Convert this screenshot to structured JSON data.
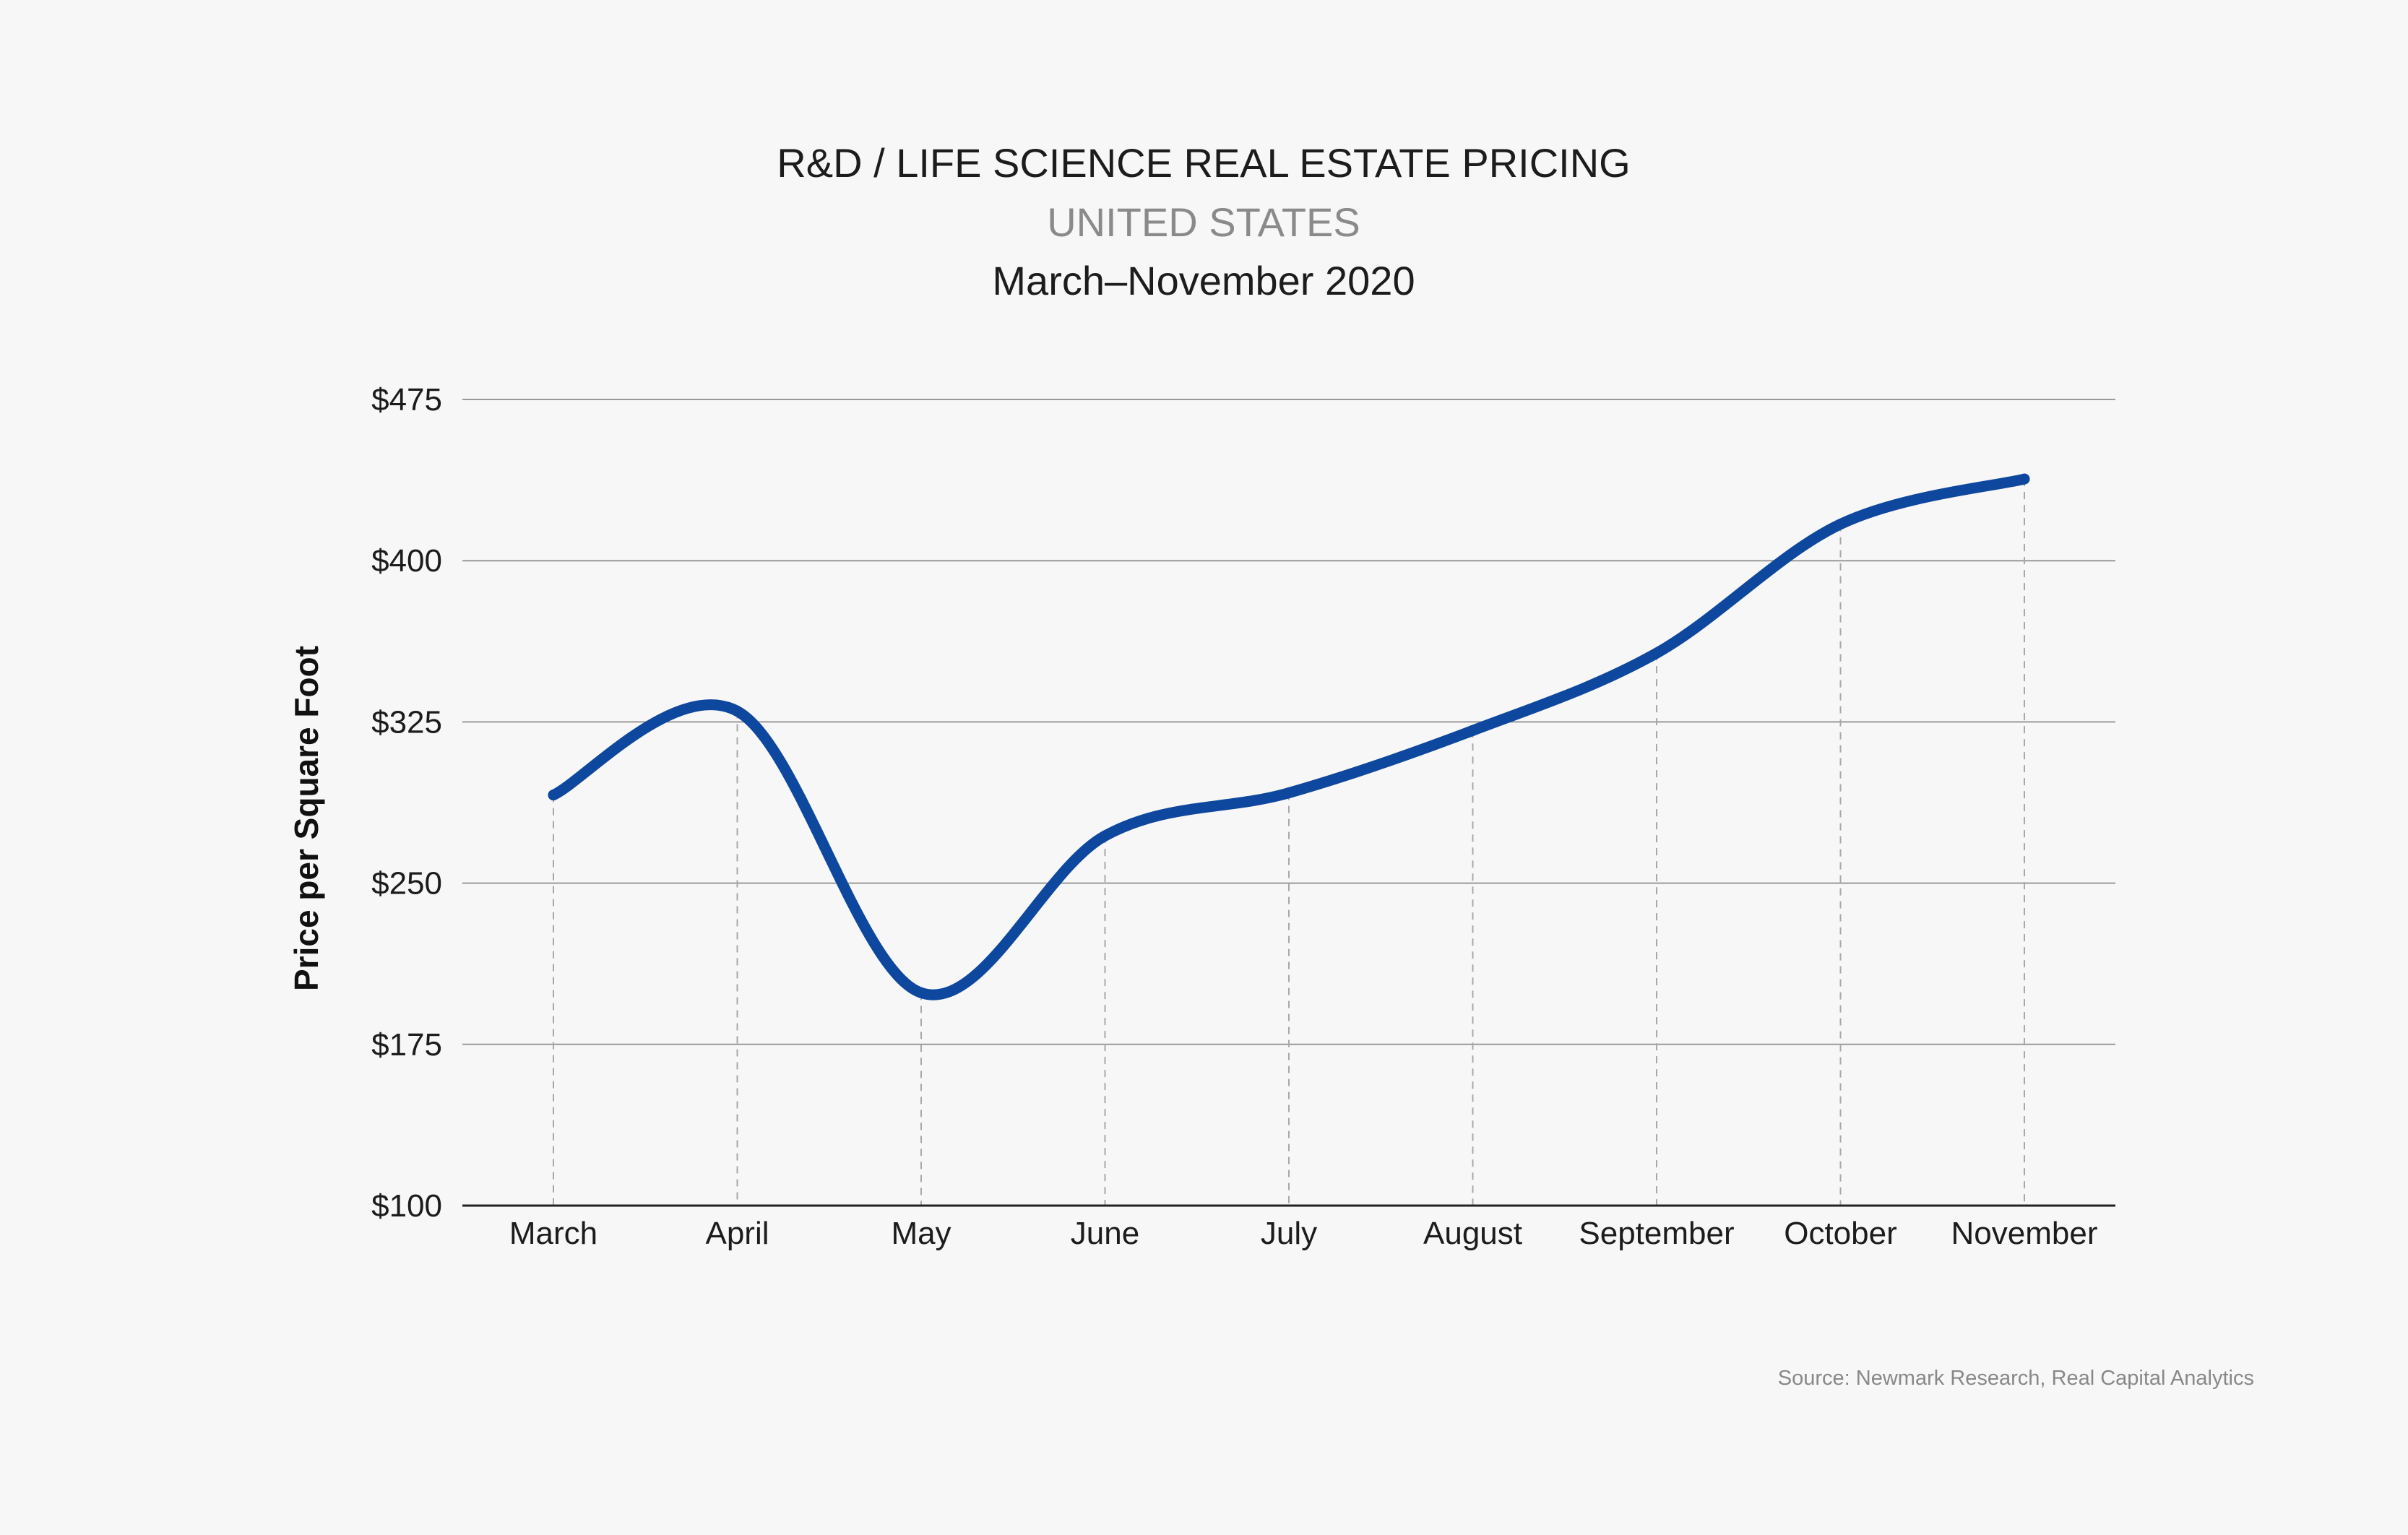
{
  "chart_data": {
    "type": "line",
    "title": "R&D / LIFE SCIENCE REAL ESTATE PRICING",
    "subtitle": "UNITED STATES",
    "date_range": "March–November 2020",
    "xlabel": "",
    "ylabel": "Price per Square Foot",
    "categories": [
      "March",
      "April",
      "May",
      "June",
      "July",
      "August",
      "September",
      "October",
      "November"
    ],
    "series": [
      {
        "values": [
          291,
          330,
          199,
          272,
          292,
          321,
          357,
          417,
          438
        ]
      }
    ],
    "yticks": [
      100,
      175,
      250,
      325,
      400,
      475
    ],
    "ytick_labels": [
      "$100",
      "$175",
      "$250",
      "$325",
      "$400",
      "$475"
    ],
    "ylim": [
      100,
      475
    ],
    "smooth": true,
    "grid": "horizontal",
    "drop_lines": true,
    "legend": "none",
    "source": "Source: Newmark Research, Real Capital Analytics"
  },
  "colors": {
    "background": "#f7f7f7",
    "line": "#0e479e",
    "grid": "#9a9a9a",
    "drop_line": "#a8a8a8",
    "axis": "#222222",
    "subtitle": "#8a8a8a"
  }
}
